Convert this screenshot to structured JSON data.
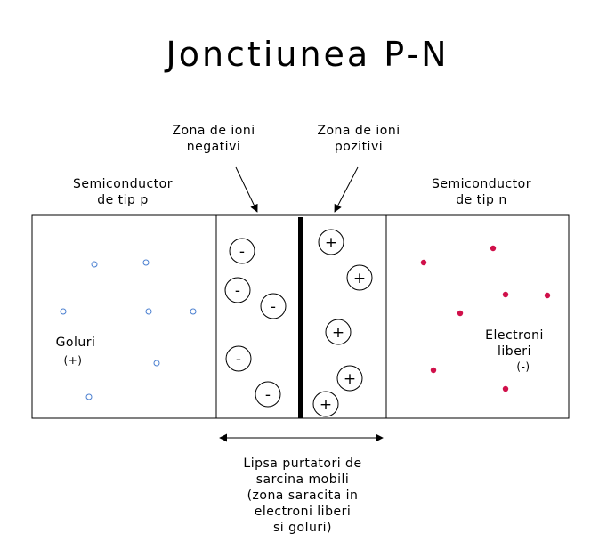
{
  "title": "Jonctiunea P-N",
  "labels": {
    "neg_zone": [
      "Zona de ioni",
      "negativi"
    ],
    "pos_zone": [
      "Zona de ioni",
      "pozitivi"
    ],
    "p_side": [
      "Semiconductor",
      "de tip p"
    ],
    "n_side": [
      "Semiconductor",
      "de tip n"
    ],
    "holes": [
      "Goluri",
      "(+)"
    ],
    "electrons": [
      "Electroni",
      "liberi",
      "(-)"
    ],
    "depletion": [
      "Lipsa purtatori de",
      "sarcina mobili",
      "(zona saracita in",
      "electroni liberi",
      "si goluri)"
    ]
  },
  "ions": {
    "negative_symbol": "-",
    "positive_symbol": "+"
  },
  "colors": {
    "hole": "#4a7fd0",
    "electron": "#d0104a",
    "line": "#000000"
  }
}
